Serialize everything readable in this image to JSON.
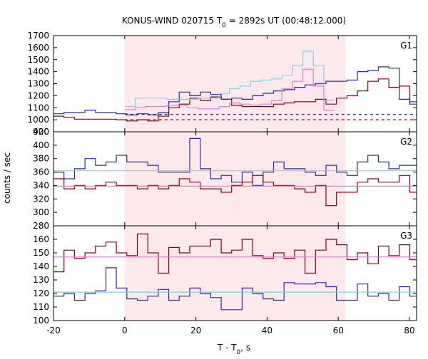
{
  "title": "KONUS-WIND 020715 T₀ = 2892s UT (00:48:12.000)",
  "title_parts": {
    "prefix": "KONUS-WIND 020715 T",
    "sub": "0",
    "suffix": " = 2892s UT (00:48:12.000)"
  },
  "xlabel_parts": {
    "prefix": "T - T",
    "sub": "0",
    "suffix": ", s"
  },
  "ylabel": "counts / sec",
  "colors": {
    "red_curve": "#8b0016",
    "blue_curve": "#2a2aa8",
    "cyan_curve": "#7fd0e8",
    "pink_curve": "#e07fd8",
    "shade": "#fde8ec"
  },
  "chart_data": [
    {
      "type": "line",
      "panel": "G1",
      "shade_interval": [
        0,
        62
      ],
      "xlim": [
        -20,
        82
      ],
      "xticks": [
        -20,
        0,
        20,
        40,
        60,
        80
      ],
      "ylim": [
        900,
        1700
      ],
      "yticks": [
        900,
        1000,
        1100,
        1200,
        1300,
        1400,
        1500,
        1600,
        1700
      ],
      "bin_width": 2.944,
      "series": [
        {
          "style": "red-step",
          "x_start": -20,
          "values": [
            1030,
            1020,
            1005,
            1005,
            1005,
            1005,
            1000,
            990,
            1000,
            990,
            1030,
            1100,
            1130,
            1180,
            1160,
            1190,
            1170,
            1120,
            1110,
            1110,
            1110,
            1130,
            1140,
            1150,
            1150,
            1170,
            1130,
            1180,
            1200,
            1240,
            1320,
            1340,
            1270,
            1280,
            1150,
            1100,
            1090,
            1080,
            1070,
            1000,
            1000,
            1005,
            1010,
            1000,
            1000
          ]
        },
        {
          "style": "blue-step",
          "x_start": -20,
          "values": [
            1050,
            1060,
            1060,
            1080,
            1060,
            1060,
            1050,
            1040,
            1050,
            1040,
            1060,
            1150,
            1230,
            1200,
            1230,
            1210,
            1170,
            1180,
            1170,
            1200,
            1220,
            1240,
            1250,
            1270,
            1290,
            1300,
            1320,
            1320,
            1330,
            1400,
            1410,
            1440,
            1430,
            1170,
            1130,
            1110,
            1110,
            1080,
            1080,
            1060,
            1060,
            1060,
            1050,
            1050,
            1060
          ]
        },
        {
          "style": "cyan-step",
          "x_start": 0,
          "values": [
            1110,
            1180,
            1180,
            1180,
            1170,
            1170,
            1170,
            1180,
            1180,
            1220,
            1260,
            1280,
            1320,
            1330,
            1340,
            1370,
            1450,
            1570,
            1450,
            1160
          ]
        },
        {
          "style": "pink-step",
          "x_start": 0,
          "values": [
            1085,
            1100,
            1110,
            1110,
            1120,
            1120,
            1100,
            1090,
            1090,
            1110,
            1140,
            1130,
            1120,
            1130,
            1160,
            1260,
            1320,
            1420,
            1280,
            1080
          ]
        },
        {
          "style": "blue-dashed",
          "x": [
            0,
            82
          ],
          "y": [
            1045,
            1045
          ]
        },
        {
          "style": "red-dashed",
          "x": [
            0,
            82
          ],
          "y": [
            1000,
            1000
          ]
        }
      ]
    },
    {
      "type": "line",
      "panel": "G2",
      "shade_interval": [
        0,
        62
      ],
      "xlim": [
        -20,
        82
      ],
      "xticks": [
        -20,
        0,
        20,
        40,
        60,
        80
      ],
      "ylim": [
        280,
        420
      ],
      "yticks": [
        280,
        300,
        320,
        340,
        360,
        380,
        400,
        420
      ],
      "bin_width": 2.944,
      "series": [
        {
          "style": "blue-step",
          "x_start": -20,
          "values": [
            360,
            350,
            365,
            380,
            370,
            375,
            385,
            375,
            375,
            370,
            360,
            360,
            360,
            410,
            365,
            350,
            355,
            345,
            360,
            340,
            360,
            375,
            365,
            365,
            360,
            355,
            370,
            360,
            355,
            375,
            385,
            375,
            365,
            370,
            370,
            360,
            355,
            375,
            375,
            360,
            375,
            375,
            330,
            360,
            360
          ]
        },
        {
          "style": "red-step",
          "x_start": -20,
          "values": [
            350,
            335,
            340,
            335,
            340,
            345,
            340,
            340,
            335,
            340,
            335,
            340,
            350,
            345,
            335,
            335,
            330,
            340,
            345,
            355,
            345,
            340,
            340,
            335,
            330,
            340,
            310,
            330,
            330,
            345,
            350,
            345,
            345,
            355,
            330,
            345,
            350,
            345,
            340,
            350,
            345,
            345,
            340,
            340,
            340
          ]
        },
        {
          "style": "cyan-line",
          "x": [
            -20,
            82
          ],
          "y": [
            362,
            362
          ]
        },
        {
          "style": "pink-line",
          "x": [
            -20,
            82
          ],
          "y": [
            339,
            339
          ]
        }
      ]
    },
    {
      "type": "line",
      "panel": "G3",
      "shade_interval": [
        0,
        62
      ],
      "xlim": [
        -20,
        82
      ],
      "xticks": [
        -20,
        0,
        20,
        40,
        60,
        80
      ],
      "ylim": [
        100,
        170
      ],
      "yticks": [
        100,
        110,
        120,
        130,
        140,
        150,
        160
      ],
      "bin_width": 2.944,
      "series": [
        {
          "style": "red-step",
          "x_start": -20,
          "values": [
            136,
            152,
            146,
            150,
            155,
            158,
            150,
            148,
            164,
            150,
            135,
            154,
            150,
            155,
            155,
            160,
            150,
            152,
            160,
            148,
            146,
            150,
            146,
            152,
            135,
            152,
            160,
            156,
            145,
            150,
            142,
            155,
            148,
            156,
            145,
            150,
            140,
            145,
            148,
            156,
            140,
            146,
            155,
            150,
            152
          ]
        },
        {
          "style": "blue-step",
          "x_start": -20,
          "values": [
            118,
            120,
            115,
            120,
            122,
            139,
            124,
            116,
            115,
            118,
            123,
            115,
            118,
            124,
            120,
            117,
            108,
            108,
            124,
            120,
            116,
            115,
            128,
            127,
            127,
            128,
            125,
            115,
            115,
            127,
            118,
            120,
            115,
            125,
            118,
            125,
            118,
            116,
            124,
            120,
            133,
            125,
            133,
            122,
            122
          ]
        },
        {
          "style": "pink-line",
          "x": [
            -20,
            82
          ],
          "y": [
            147,
            147
          ]
        },
        {
          "style": "cyan-line",
          "x": [
            -20,
            82
          ],
          "y": [
            121,
            121
          ]
        }
      ]
    }
  ]
}
